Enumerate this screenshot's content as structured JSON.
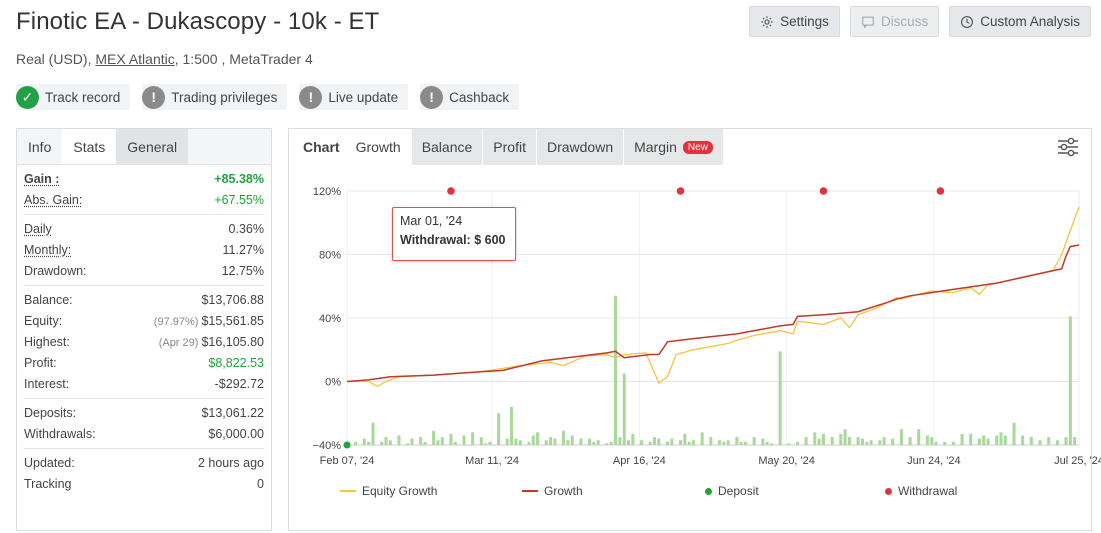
{
  "header": {
    "title": "Finotic EA - Dukascopy - 10k - ET",
    "account_type": "Real (USD),",
    "broker": "MEX Atlantic",
    "leverage_platform": ", 1:500 , MetaTrader 4"
  },
  "top_buttons": {
    "settings": "Settings",
    "discuss": "Discuss",
    "custom_analysis": "Custom Analysis"
  },
  "badges": [
    {
      "label": "Track record",
      "status": "verified"
    },
    {
      "label": "Trading privileges",
      "status": "unverified"
    },
    {
      "label": "Live update",
      "status": "unverified"
    },
    {
      "label": "Cashback",
      "status": "unverified"
    }
  ],
  "left_tabs": [
    "Info",
    "Stats",
    "General"
  ],
  "stats": {
    "gain_label": "Gain :",
    "gain": "+85.38%",
    "abs_gain_label": "Abs. Gain:",
    "abs_gain": "+67.55%",
    "daily_label": "Daily",
    "daily": "0.36%",
    "monthly_label": "Monthly:",
    "monthly": "11.27%",
    "drawdown_label": "Drawdown:",
    "drawdown": "12.75%",
    "balance_label": "Balance:",
    "balance": "$13,706.88",
    "equity_label": "Equity:",
    "equity_note": "(97.97%)",
    "equity": "$15,561.85",
    "highest_label": "Highest:",
    "highest_note": "(Apr 29)",
    "highest": "$16,105.80",
    "profit_label": "Profit:",
    "profit": "$8,822.53",
    "interest_label": "Interest:",
    "interest": "-$292.72",
    "deposits_label": "Deposits:",
    "deposits": "$13,061.22",
    "withdrawals_label": "Withdrawals:",
    "withdrawals": "$6,000.00",
    "updated_label": "Updated:",
    "updated": "2 hours ago",
    "tracking_label": "Tracking",
    "tracking": "0"
  },
  "chart_tabs": {
    "label": "Chart",
    "tabs": [
      "Growth",
      "Balance",
      "Profit",
      "Drawdown",
      "Margin"
    ],
    "new_badge": "New"
  },
  "tooltip": {
    "date": "Mar 01, '24",
    "label": "Withdrawal:",
    "value": "$ 600"
  },
  "legend": {
    "equity_growth": "Equity Growth",
    "growth": "Growth",
    "deposit": "Deposit",
    "withdrawal": "Withdrawal"
  },
  "colors": {
    "equity_growth": "#f5c242",
    "growth": "#c0392b",
    "deposit": "#1fa33a",
    "withdrawal": "#e0333c",
    "bars": "#a8d89a",
    "positive": "#1fa33a"
  },
  "chart_data": {
    "type": "line",
    "x_ticks": [
      "Feb 07, '24",
      "Mar 11, '24",
      "Apr 16, '24",
      "May 20, '24",
      "Jun 24, '24",
      "Jul 25, '24"
    ],
    "y_ticks": [
      "120%",
      "80%",
      "40%",
      "0%",
      "−40%"
    ],
    "ylim": [
      -40,
      120
    ],
    "xlim": [
      0,
      169
    ],
    "series": [
      {
        "name": "Equity Growth",
        "x": [
          0,
          5,
          7,
          9,
          12,
          20,
          30,
          33,
          40,
          47,
          50,
          55,
          60,
          62,
          64,
          69,
          72,
          74,
          76,
          80,
          88,
          90,
          94,
          100,
          103,
          104,
          110,
          114,
          116,
          118,
          122,
          127,
          128,
          132,
          135,
          140,
          144,
          146,
          148,
          150,
          160,
          163,
          165,
          167,
          169
        ],
        "values": [
          0,
          0,
          -3,
          0,
          3,
          4,
          6,
          7,
          10,
          12,
          10,
          16,
          17,
          15,
          17,
          18,
          -1,
          3,
          17,
          20,
          24,
          26,
          29,
          32,
          30,
          38,
          36,
          40,
          34,
          42,
          46,
          53,
          52,
          55,
          57,
          56,
          59,
          55,
          61,
          62,
          68,
          70,
          80,
          95,
          110
        ]
      },
      {
        "name": "Growth",
        "x": [
          0,
          5,
          10,
          20,
          30,
          36,
          45,
          60,
          62,
          64,
          70,
          72,
          74,
          80,
          90,
          100,
          103,
          104,
          110,
          118,
          125,
          127,
          130,
          135,
          140,
          150,
          160,
          165,
          166,
          167,
          169
        ],
        "values": [
          0,
          1,
          3,
          4,
          6,
          7,
          13,
          18,
          19,
          15,
          17,
          17,
          25,
          27,
          30,
          35,
          36,
          41,
          42,
          44,
          50,
          52,
          54,
          56,
          58,
          62,
          68,
          71,
          79,
          85,
          86
        ]
      }
    ],
    "bars_series": {
      "name": "Bars",
      "x": [
        2,
        4,
        5,
        6,
        8,
        9,
        10,
        12,
        14,
        15,
        17,
        18,
        20,
        21,
        22,
        24,
        25,
        27,
        29,
        31,
        32,
        33,
        35,
        37,
        38,
        39,
        40,
        42,
        43,
        44,
        46,
        47,
        48,
        50,
        51,
        52,
        54,
        56,
        57,
        58,
        60,
        61,
        62,
        63,
        64,
        65,
        66,
        68,
        70,
        71,
        72,
        74,
        75,
        77,
        78,
        79,
        80,
        82,
        84,
        86,
        87,
        88,
        90,
        91,
        92,
        94,
        96,
        97,
        98,
        100,
        102,
        104,
        106,
        108,
        109,
        110,
        112,
        114,
        115,
        116,
        118,
        119,
        120,
        121,
        123,
        124,
        126,
        128,
        130,
        132,
        134,
        135,
        136,
        138,
        140,
        142,
        144,
        146,
        147,
        148,
        150,
        151,
        152,
        154,
        156,
        158,
        160,
        162,
        164,
        166,
        167,
        168
      ],
      "values": [
        2,
        4,
        2,
        14,
        2,
        5,
        3,
        6,
        1,
        4,
        5,
        2,
        9,
        3,
        5,
        7,
        2,
        6,
        8,
        5,
        1,
        2,
        20,
        4,
        24,
        4,
        3,
        2,
        6,
        8,
        3,
        5,
        4,
        9,
        3,
        6,
        4,
        4,
        2,
        3,
        1,
        2,
        94,
        5,
        45,
        3,
        7,
        3,
        2,
        5,
        4,
        2,
        4,
        3,
        7,
        2,
        3,
        8,
        5,
        3,
        2,
        3,
        5,
        2,
        2,
        5,
        4,
        2,
        1,
        59,
        1,
        2,
        5,
        8,
        4,
        7,
        5,
        7,
        10,
        5,
        5,
        4,
        2,
        3,
        3,
        5,
        4,
        10,
        5,
        10,
        6,
        5,
        2,
        2,
        2,
        7,
        7,
        4,
        6,
        4,
        6,
        8,
        6,
        14,
        6,
        5,
        3,
        5,
        3,
        5,
        81,
        5
      ]
    },
    "deposit_points": [
      {
        "x": 0,
        "y": -40
      }
    ],
    "withdrawal_points": [
      {
        "x": 24,
        "y": 120
      },
      {
        "x": 77,
        "y": 120
      },
      {
        "x": 110,
        "y": 120
      },
      {
        "x": 137,
        "y": 120
      }
    ],
    "grid": true
  }
}
